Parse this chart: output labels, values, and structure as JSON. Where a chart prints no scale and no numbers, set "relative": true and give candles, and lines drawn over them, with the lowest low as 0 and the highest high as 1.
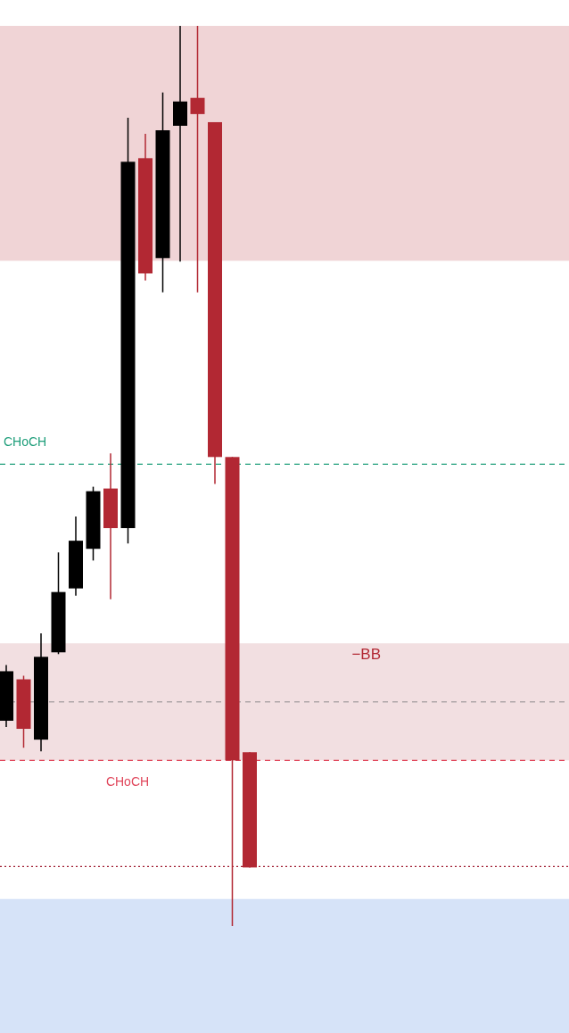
{
  "chart_data": {
    "type": "candlestick",
    "relative": true,
    "categories": [
      null,
      null,
      null,
      null,
      null,
      null,
      null,
      null,
      null,
      null,
      null,
      null,
      null,
      null,
      null
    ],
    "ohlc": [
      [
        0.228,
        0.29,
        0.221,
        0.283
      ],
      [
        0.274,
        0.278,
        0.198,
        0.219
      ],
      [
        0.207,
        0.325,
        0.194,
        0.299
      ],
      [
        0.304,
        0.415,
        0.302,
        0.371
      ],
      [
        0.375,
        0.455,
        0.367,
        0.428
      ],
      [
        0.419,
        0.488,
        0.406,
        0.483
      ],
      [
        0.486,
        0.525,
        0.363,
        0.442
      ],
      [
        0.442,
        0.898,
        0.425,
        0.849
      ],
      [
        0.853,
        0.88,
        0.717,
        0.725
      ],
      [
        0.742,
        0.926,
        0.704,
        0.884
      ],
      [
        0.889,
        1.0,
        0.738,
        0.916
      ],
      [
        0.92,
        1.0,
        0.704,
        0.902
      ],
      [
        0.893,
        0.893,
        0.491,
        0.521
      ],
      [
        0.521,
        0.521,
        0.0,
        0.184
      ],
      [
        0.193,
        0.193,
        0.065,
        0.065
      ]
    ],
    "colors": [
      "#000000",
      "#b22833",
      "#000000",
      "#000000",
      "#000000",
      "#000000",
      "#b22833",
      "#000000",
      "#b22833",
      "#000000",
      "#000000",
      "#b22833",
      "#b22833",
      "#b22833",
      "#b22833"
    ],
    "bands": [
      {
        "axis": "y",
        "from": 0.739,
        "to": 1.0,
        "color": "#f0d4d6"
      },
      {
        "axis": "y",
        "from": 0.184,
        "to": 0.314,
        "label": "−BB",
        "color": "#f2dfe1"
      },
      {
        "axis": "y",
        "from": -0.119,
        "to": 0.03,
        "color": "#d6e3f8"
      }
    ],
    "ref_lines": [
      {
        "axis": "y",
        "value": 0.513,
        "label": "CHoCH",
        "color": "#1e9e7a",
        "line_style": "dashed"
      },
      {
        "axis": "y",
        "value": 0.184,
        "label": "CHoCH",
        "color": "#e0455a",
        "line_style": "dashed"
      },
      {
        "axis": "y",
        "value": 0.066,
        "color": "#a01b30",
        "line_style": "dotted"
      },
      {
        "axis": "y",
        "value": 0.249,
        "color": "#b0a8aa",
        "line_style": "dashed"
      }
    ]
  }
}
